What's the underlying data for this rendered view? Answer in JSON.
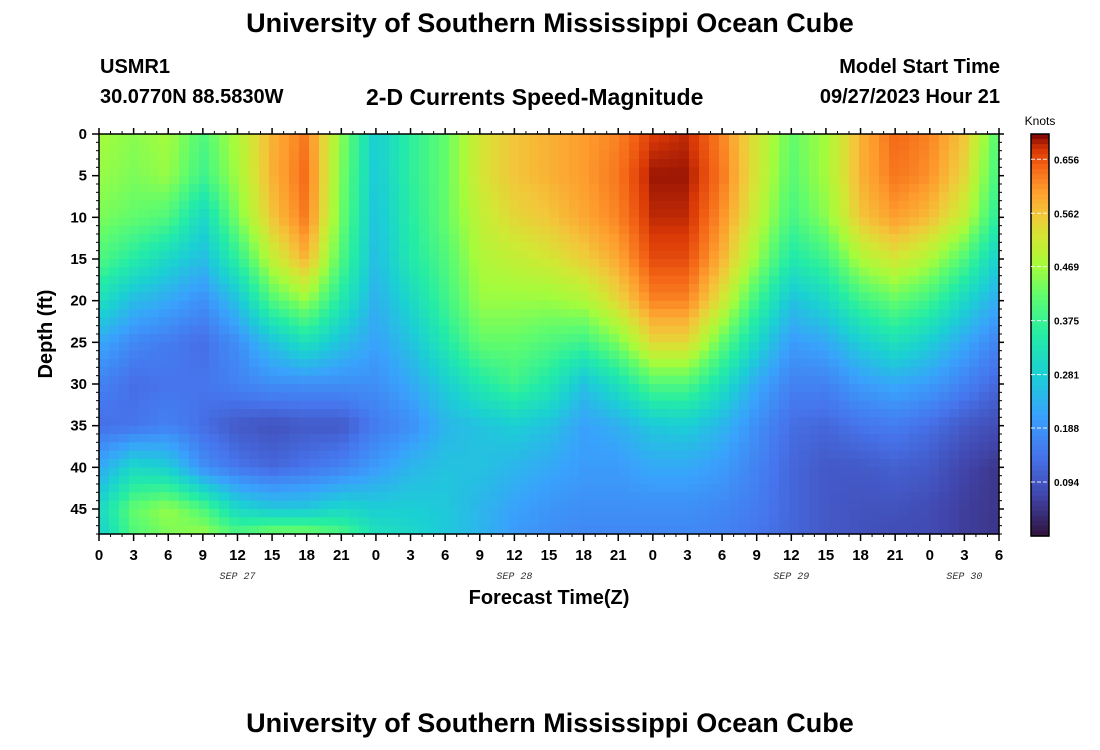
{
  "header": {
    "title": "University of Southern Mississippi Ocean Cube",
    "station": "USMR1",
    "coords": "30.0770N  88.5830W",
    "plot_title": "2-D Currents Speed-Magnitude",
    "model_label": "Model Start Time",
    "model_time": "09/27/2023 Hour 21"
  },
  "footer": {
    "title": "University of Southern Mississippi Ocean Cube"
  },
  "chart_data": {
    "type": "heatmap",
    "xlabel": "Forecast Time(Z)",
    "ylabel": "Depth (ft)",
    "x_hours": [
      0,
      78
    ],
    "ylim": [
      0,
      48
    ],
    "x_tick_labels": [
      "0",
      "3",
      "6",
      "9",
      "12",
      "15",
      "18",
      "21",
      "0",
      "3",
      "6",
      "9",
      "12",
      "15",
      "18",
      "21",
      "0",
      "3",
      "6",
      "9",
      "12",
      "15",
      "18",
      "21",
      "0",
      "3",
      "6"
    ],
    "y_ticks": [
      0,
      5,
      10,
      15,
      20,
      25,
      30,
      35,
      40,
      45
    ],
    "date_labels": [
      {
        "label": "SEP 27",
        "hour": 12
      },
      {
        "label": "SEP 28",
        "hour": 36
      },
      {
        "label": "SEP 29",
        "hour": 60
      },
      {
        "label": "SEP 30",
        "hour": 75
      }
    ],
    "colorbar": {
      "title": "Knots",
      "min": 0,
      "max": 0.7,
      "ticks": [
        "0.656",
        "0.562",
        "0.469",
        "0.375",
        "0.281",
        "0.188",
        "0.094"
      ],
      "tick_values": [
        0.656,
        0.562,
        0.469,
        0.375,
        0.281,
        0.188,
        0.094
      ]
    },
    "grid_hours": [
      0,
      3,
      6,
      9,
      12,
      15,
      18,
      21,
      24,
      27,
      30,
      33,
      36,
      39,
      42,
      45,
      48,
      51,
      54,
      57,
      60,
      63,
      66,
      69,
      72,
      75,
      78
    ],
    "grid_depths": [
      0,
      5,
      10,
      15,
      20,
      25,
      30,
      35,
      40,
      45,
      48
    ],
    "values": [
      [
        0.47,
        0.45,
        0.47,
        0.4,
        0.48,
        0.58,
        0.63,
        0.45,
        0.28,
        0.36,
        0.42,
        0.52,
        0.56,
        0.58,
        0.6,
        0.62,
        0.67,
        0.68,
        0.62,
        0.52,
        0.42,
        0.47,
        0.58,
        0.64,
        0.62,
        0.56,
        0.4
      ],
      [
        0.46,
        0.44,
        0.46,
        0.38,
        0.47,
        0.58,
        0.64,
        0.44,
        0.27,
        0.36,
        0.42,
        0.52,
        0.56,
        0.58,
        0.6,
        0.63,
        0.69,
        0.69,
        0.63,
        0.52,
        0.41,
        0.47,
        0.58,
        0.63,
        0.61,
        0.54,
        0.38
      ],
      [
        0.44,
        0.42,
        0.4,
        0.3,
        0.44,
        0.56,
        0.63,
        0.43,
        0.26,
        0.35,
        0.42,
        0.5,
        0.54,
        0.56,
        0.59,
        0.62,
        0.68,
        0.68,
        0.61,
        0.5,
        0.39,
        0.45,
        0.56,
        0.6,
        0.57,
        0.5,
        0.35
      ],
      [
        0.4,
        0.35,
        0.3,
        0.25,
        0.36,
        0.5,
        0.58,
        0.4,
        0.25,
        0.34,
        0.4,
        0.48,
        0.5,
        0.52,
        0.55,
        0.59,
        0.66,
        0.66,
        0.58,
        0.46,
        0.34,
        0.38,
        0.48,
        0.52,
        0.48,
        0.4,
        0.28
      ],
      [
        0.32,
        0.25,
        0.22,
        0.18,
        0.26,
        0.4,
        0.46,
        0.34,
        0.23,
        0.3,
        0.38,
        0.46,
        0.46,
        0.46,
        0.48,
        0.54,
        0.62,
        0.62,
        0.52,
        0.38,
        0.26,
        0.3,
        0.38,
        0.42,
        0.38,
        0.3,
        0.22
      ],
      [
        0.22,
        0.17,
        0.15,
        0.13,
        0.18,
        0.26,
        0.32,
        0.26,
        0.21,
        0.26,
        0.34,
        0.42,
        0.42,
        0.4,
        0.38,
        0.44,
        0.54,
        0.54,
        0.42,
        0.3,
        0.2,
        0.22,
        0.28,
        0.32,
        0.28,
        0.22,
        0.16
      ],
      [
        0.16,
        0.13,
        0.14,
        0.14,
        0.16,
        0.18,
        0.18,
        0.18,
        0.18,
        0.22,
        0.28,
        0.34,
        0.38,
        0.34,
        0.26,
        0.32,
        0.4,
        0.4,
        0.32,
        0.22,
        0.16,
        0.16,
        0.2,
        0.22,
        0.2,
        0.16,
        0.12
      ],
      [
        0.13,
        0.14,
        0.16,
        0.13,
        0.1,
        0.09,
        0.1,
        0.1,
        0.15,
        0.18,
        0.24,
        0.26,
        0.28,
        0.26,
        0.21,
        0.23,
        0.27,
        0.28,
        0.24,
        0.18,
        0.13,
        0.12,
        0.14,
        0.15,
        0.13,
        0.1,
        0.08
      ],
      [
        0.22,
        0.3,
        0.28,
        0.18,
        0.14,
        0.12,
        0.14,
        0.16,
        0.2,
        0.24,
        0.26,
        0.26,
        0.24,
        0.22,
        0.2,
        0.2,
        0.22,
        0.22,
        0.2,
        0.16,
        0.12,
        0.1,
        0.1,
        0.11,
        0.1,
        0.07,
        0.05
      ],
      [
        0.3,
        0.42,
        0.46,
        0.4,
        0.3,
        0.27,
        0.27,
        0.3,
        0.28,
        0.28,
        0.27,
        0.24,
        0.21,
        0.19,
        0.18,
        0.18,
        0.18,
        0.18,
        0.17,
        0.15,
        0.12,
        0.1,
        0.09,
        0.09,
        0.08,
        0.06,
        0.05
      ],
      [
        0.28,
        0.4,
        0.44,
        0.46,
        0.4,
        0.44,
        0.44,
        0.4,
        0.32,
        0.3,
        0.27,
        0.24,
        0.2,
        0.18,
        0.17,
        0.17,
        0.17,
        0.17,
        0.16,
        0.14,
        0.12,
        0.1,
        0.09,
        0.08,
        0.08,
        0.06,
        0.05
      ]
    ]
  }
}
